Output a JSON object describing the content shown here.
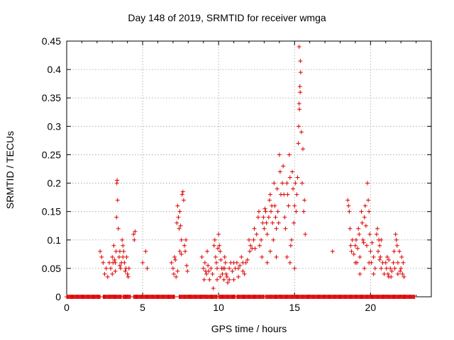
{
  "chart_data": {
    "type": "scatter",
    "title": "Day 148 of 2019, SRMTID for receiver wmga",
    "xlabel": "GPS time / hours",
    "ylabel": "SRMTID / TECUs",
    "xlim": [
      0,
      24
    ],
    "ylim": [
      0,
      0.45
    ],
    "xticks": [
      0,
      5,
      10,
      15,
      20
    ],
    "xtick_labels": [
      "0",
      "5",
      "10",
      "15",
      "20"
    ],
    "yticks": [
      0,
      0.05,
      0.1,
      0.15,
      0.2,
      0.25,
      0.3,
      0.35,
      0.4,
      0.45
    ],
    "ytick_labels": [
      "0",
      "0.05",
      "0.1",
      "0.15",
      "0.2",
      "0.25",
      "0.3",
      "0.35",
      "0.4",
      "0.45"
    ],
    "grid": true,
    "marker": "+",
    "color": "#dd0000",
    "series": [
      {
        "name": "SRMTID",
        "points": [
          [
            2.2,
            0.08
          ],
          [
            2.3,
            0.07
          ],
          [
            2.4,
            0.06
          ],
          [
            2.5,
            0.04
          ],
          [
            2.6,
            0.05
          ],
          [
            2.7,
            0.035
          ],
          [
            2.8,
            0.06
          ],
          [
            2.9,
            0.05
          ],
          [
            3.0,
            0.07
          ],
          [
            3.05,
            0.06
          ],
          [
            3.1,
            0.09
          ],
          [
            3.15,
            0.065
          ],
          [
            3.2,
            0.06
          ],
          [
            3.25,
            0.08
          ],
          [
            3.3,
            0.2
          ],
          [
            3.32,
            0.205
          ],
          [
            3.35,
            0.17
          ],
          [
            3.28,
            0.14
          ],
          [
            3.4,
            0.12
          ],
          [
            3.45,
            0.07
          ],
          [
            3.5,
            0.08
          ],
          [
            3.55,
            0.05
          ],
          [
            3.6,
            0.06
          ],
          [
            3.65,
            0.1
          ],
          [
            3.7,
            0.07
          ],
          [
            3.75,
            0.08
          ],
          [
            3.8,
            0.06
          ],
          [
            3.85,
            0.045
          ],
          [
            3.9,
            0.05
          ],
          [
            3.95,
            0.07
          ],
          [
            4.0,
            0.04
          ],
          [
            4.05,
            0.035
          ],
          [
            4.1,
            0.05
          ],
          [
            3.0,
            0.04
          ],
          [
            3.2,
            0.045
          ],
          [
            3.5,
            0.055
          ],
          [
            3.7,
            0.09
          ],
          [
            4.4,
            0.11
          ],
          [
            4.5,
            0.115
          ],
          [
            4.45,
            0.1
          ],
          [
            5.0,
            0.06
          ],
          [
            5.2,
            0.08
          ],
          [
            5.3,
            0.05
          ],
          [
            6.9,
            0.06
          ],
          [
            7.0,
            0.05
          ],
          [
            7.05,
            0.04
          ],
          [
            7.1,
            0.07
          ],
          [
            7.15,
            0.065
          ],
          [
            7.2,
            0.035
          ],
          [
            7.25,
            0.13
          ],
          [
            7.3,
            0.16
          ],
          [
            7.35,
            0.14
          ],
          [
            7.4,
            0.12
          ],
          [
            7.45,
            0.15
          ],
          [
            7.5,
            0.125
          ],
          [
            7.55,
            0.1
          ],
          [
            7.6,
            0.18
          ],
          [
            7.65,
            0.185
          ],
          [
            7.7,
            0.17
          ],
          [
            7.75,
            0.09
          ],
          [
            7.8,
            0.08
          ],
          [
            7.85,
            0.1
          ],
          [
            7.9,
            0.055
          ],
          [
            7.95,
            0.045
          ],
          [
            7.3,
            0.045
          ],
          [
            7.45,
            0.08
          ],
          [
            7.55,
            0.075
          ],
          [
            8.9,
            0.07
          ],
          [
            9.0,
            0.05
          ],
          [
            9.05,
            0.03
          ],
          [
            9.1,
            0.06
          ],
          [
            9.15,
            0.045
          ],
          [
            9.2,
            0.04
          ],
          [
            9.25,
            0.08
          ],
          [
            9.3,
            0.055
          ],
          [
            9.35,
            0.045
          ],
          [
            9.4,
            0.03
          ],
          [
            9.5,
            0.05
          ],
          [
            9.6,
            0.04
          ],
          [
            9.65,
            0.015
          ],
          [
            9.7,
            0.09
          ],
          [
            9.75,
            0.1
          ],
          [
            9.8,
            0.07
          ],
          [
            9.85,
            0.06
          ],
          [
            9.9,
            0.05
          ],
          [
            9.95,
            0.085
          ],
          [
            10.0,
            0.11
          ],
          [
            10.05,
            0.09
          ],
          [
            10.1,
            0.08
          ],
          [
            10.15,
            0.065
          ],
          [
            10.2,
            0.05
          ],
          [
            10.25,
            0.04
          ],
          [
            10.3,
            0.05
          ],
          [
            10.35,
            0.03
          ],
          [
            10.4,
            0.05
          ],
          [
            10.45,
            0.06
          ],
          [
            10.5,
            0.04
          ],
          [
            10.55,
            0.035
          ],
          [
            10.6,
            0.025
          ],
          [
            10.7,
            0.05
          ],
          [
            10.8,
            0.06
          ],
          [
            10.9,
            0.045
          ],
          [
            11.0,
            0.03
          ],
          [
            11.1,
            0.05
          ],
          [
            11.2,
            0.06
          ],
          [
            11.3,
            0.035
          ],
          [
            11.4,
            0.055
          ],
          [
            11.5,
            0.07
          ],
          [
            11.6,
            0.045
          ],
          [
            11.7,
            0.04
          ],
          [
            11.8,
            0.06
          ],
          [
            11.9,
            0.065
          ],
          [
            9.9,
            0.03
          ],
          [
            10.1,
            0.035
          ],
          [
            10.4,
            0.07
          ],
          [
            10.7,
            0.03
          ],
          [
            11.0,
            0.06
          ],
          [
            11.3,
            0.05
          ],
          [
            11.6,
            0.06
          ],
          [
            12.0,
            0.1
          ],
          [
            12.05,
            0.08
          ],
          [
            12.1,
            0.09
          ],
          [
            12.2,
            0.085
          ],
          [
            12.3,
            0.1
          ],
          [
            12.35,
            0.12
          ],
          [
            12.4,
            0.085
          ],
          [
            12.5,
            0.11
          ],
          [
            12.6,
            0.14
          ],
          [
            12.65,
            0.15
          ],
          [
            12.7,
            0.09
          ],
          [
            12.8,
            0.1
          ],
          [
            12.85,
            0.07
          ],
          [
            12.9,
            0.13
          ],
          [
            12.95,
            0.14
          ],
          [
            13.0,
            0.12
          ],
          [
            13.05,
            0.155
          ],
          [
            13.1,
            0.15
          ],
          [
            13.15,
            0.13
          ],
          [
            13.2,
            0.11
          ],
          [
            13.3,
            0.14
          ],
          [
            13.35,
            0.17
          ],
          [
            13.4,
            0.18
          ],
          [
            13.45,
            0.15
          ],
          [
            13.5,
            0.16
          ],
          [
            13.55,
            0.13
          ],
          [
            13.6,
            0.1
          ],
          [
            13.65,
            0.2
          ],
          [
            13.7,
            0.16
          ],
          [
            13.75,
            0.14
          ],
          [
            13.8,
            0.12
          ],
          [
            13.85,
            0.19
          ],
          [
            13.9,
            0.15
          ],
          [
            13.95,
            0.13
          ],
          [
            14.0,
            0.25
          ],
          [
            14.05,
            0.22
          ],
          [
            14.1,
            0.18
          ],
          [
            14.2,
            0.2
          ],
          [
            14.25,
            0.23
          ],
          [
            14.3,
            0.18
          ],
          [
            14.35,
            0.14
          ],
          [
            14.4,
            0.12
          ],
          [
            14.5,
            0.2
          ],
          [
            14.55,
            0.18
          ],
          [
            14.6,
            0.16
          ],
          [
            14.65,
            0.25
          ],
          [
            14.7,
            0.21
          ],
          [
            14.75,
            0.09
          ],
          [
            14.8,
            0.1
          ],
          [
            14.85,
            0.22
          ],
          [
            14.9,
            0.19
          ],
          [
            14.95,
            0.13
          ],
          [
            15.0,
            0.16
          ],
          [
            15.05,
            0.2
          ],
          [
            15.1,
            0.15
          ],
          [
            15.15,
            0.18
          ],
          [
            15.2,
            0.21
          ],
          [
            15.25,
            0.27
          ],
          [
            15.27,
            0.3
          ],
          [
            15.3,
            0.34
          ],
          [
            15.32,
            0.33
          ],
          [
            15.35,
            0.37
          ],
          [
            15.37,
            0.36
          ],
          [
            15.4,
            0.395
          ],
          [
            15.38,
            0.415
          ],
          [
            15.3,
            0.44
          ],
          [
            15.45,
            0.29
          ],
          [
            15.5,
            0.2
          ],
          [
            15.55,
            0.26
          ],
          [
            15.6,
            0.15
          ],
          [
            15.65,
            0.17
          ],
          [
            15.7,
            0.11
          ],
          [
            13.4,
            0.08
          ],
          [
            13.8,
            0.07
          ],
          [
            14.5,
            0.07
          ],
          [
            14.7,
            0.06
          ],
          [
            15.0,
            0.05
          ],
          [
            13.2,
            0.06
          ],
          [
            17.5,
            0.08
          ],
          [
            18.5,
            0.17
          ],
          [
            18.55,
            0.16
          ],
          [
            18.6,
            0.15
          ],
          [
            18.65,
            0.12
          ],
          [
            18.7,
            0.09
          ],
          [
            18.75,
            0.08
          ],
          [
            18.8,
            0.1
          ],
          [
            18.9,
            0.075
          ],
          [
            19.0,
            0.09
          ],
          [
            19.05,
            0.1
          ],
          [
            19.1,
            0.06
          ],
          [
            19.15,
            0.085
          ],
          [
            19.2,
            0.12
          ],
          [
            19.25,
            0.11
          ],
          [
            19.3,
            0.07
          ],
          [
            19.4,
            0.15
          ],
          [
            19.45,
            0.13
          ],
          [
            19.5,
            0.1
          ],
          [
            19.55,
            0.095
          ],
          [
            19.6,
            0.14
          ],
          [
            19.65,
            0.16
          ],
          [
            19.7,
            0.125
          ],
          [
            19.75,
            0.09
          ],
          [
            19.8,
            0.2
          ],
          [
            19.85,
            0.17
          ],
          [
            19.9,
            0.15
          ],
          [
            19.95,
            0.11
          ],
          [
            20.0,
            0.08
          ],
          [
            20.05,
            0.06
          ],
          [
            20.1,
            0.095
          ],
          [
            20.2,
            0.07
          ],
          [
            20.3,
            0.05
          ],
          [
            20.4,
            0.11
          ],
          [
            20.45,
            0.12
          ],
          [
            20.5,
            0.08
          ],
          [
            20.55,
            0.1
          ],
          [
            20.6,
            0.09
          ],
          [
            20.65,
            0.07
          ],
          [
            20.7,
            0.05
          ],
          [
            20.8,
            0.06
          ],
          [
            20.9,
            0.04
          ],
          [
            19.0,
            0.06
          ],
          [
            19.3,
            0.04
          ],
          [
            19.6,
            0.05
          ],
          [
            19.9,
            0.06
          ],
          [
            20.2,
            0.04
          ],
          [
            20.6,
            0.065
          ],
          [
            20.7,
            0.1
          ],
          [
            21.0,
            0.06
          ],
          [
            21.05,
            0.05
          ],
          [
            21.1,
            0.07
          ],
          [
            21.15,
            0.04
          ],
          [
            21.2,
            0.065
          ],
          [
            21.3,
            0.05
          ],
          [
            21.35,
            0.035
          ],
          [
            21.4,
            0.045
          ],
          [
            21.5,
            0.06
          ],
          [
            21.55,
            0.08
          ],
          [
            21.6,
            0.05
          ],
          [
            21.65,
            0.11
          ],
          [
            21.7,
            0.1
          ],
          [
            21.75,
            0.09
          ],
          [
            21.8,
            0.06
          ],
          [
            21.9,
            0.08
          ],
          [
            21.95,
            0.045
          ],
          [
            22.0,
            0.05
          ],
          [
            22.05,
            0.07
          ],
          [
            22.1,
            0.04
          ],
          [
            22.15,
            0.06
          ],
          [
            22.2,
            0.035
          ],
          [
            21.2,
            0.035
          ],
          [
            21.8,
            0.04
          ]
        ]
      }
    ],
    "zero_segments": [
      [
        0.0,
        2.2
      ],
      [
        2.4,
        3.6
      ],
      [
        3.7,
        4.2
      ],
      [
        4.4,
        7.1
      ],
      [
        7.4,
        9.9
      ],
      [
        10.0,
        11.1
      ],
      [
        11.2,
        13.0
      ],
      [
        13.1,
        22.9
      ]
    ],
    "zero_value": 0
  }
}
